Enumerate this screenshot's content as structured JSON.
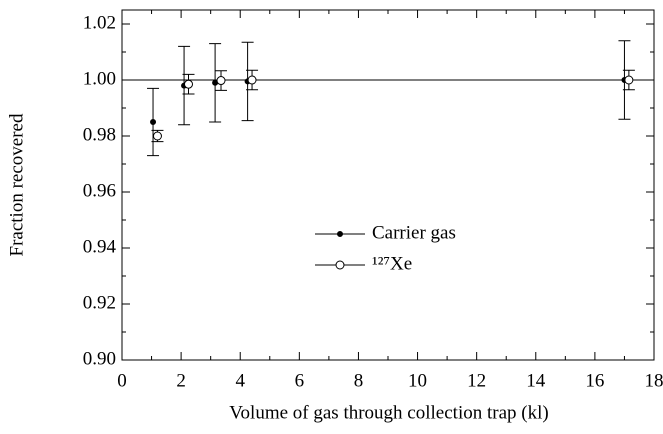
{
  "chart_data": {
    "type": "scatter",
    "xlabel": "Volume of gas through collection trap (kl)",
    "ylabel": "Fraction recovered",
    "xlim": [
      0,
      18
    ],
    "ylim": [
      0.9,
      1.025
    ],
    "xticks": [
      0,
      2,
      4,
      6,
      8,
      10,
      12,
      14,
      16,
      18
    ],
    "xminorticks": [
      1,
      3,
      5,
      7,
      9,
      11,
      13,
      15,
      17
    ],
    "yticks": [
      {
        "value": 0.9,
        "label": "0.90"
      },
      0.92,
      0.94,
      0.96,
      0.98,
      {
        "value": 1.0,
        "label": "1.00"
      },
      1.02
    ],
    "yminorticks": [
      0.91,
      0.93,
      0.95,
      0.97,
      0.99,
      1.01
    ],
    "hline": 1.0,
    "series": [
      {
        "name": "Carrier gas",
        "color": "#000000",
        "marker": "filled",
        "x": [
          1.05,
          2.1,
          3.15,
          4.25,
          17.0
        ],
        "values": [
          0.985,
          0.998,
          0.999,
          0.9995,
          1.0
        ],
        "errors": [
          0.012,
          0.014,
          0.014,
          0.014,
          0.014
        ]
      },
      {
        "name": "¹²⁷Xe",
        "color": "#000000",
        "marker": "open",
        "x": [
          1.2,
          2.25,
          3.35,
          4.4,
          17.15
        ],
        "values": [
          0.98,
          0.9985,
          0.9998,
          1.0,
          1.0
        ],
        "errors": [
          0.002,
          0.0035,
          0.0035,
          0.0035,
          0.0035
        ]
      }
    ]
  }
}
